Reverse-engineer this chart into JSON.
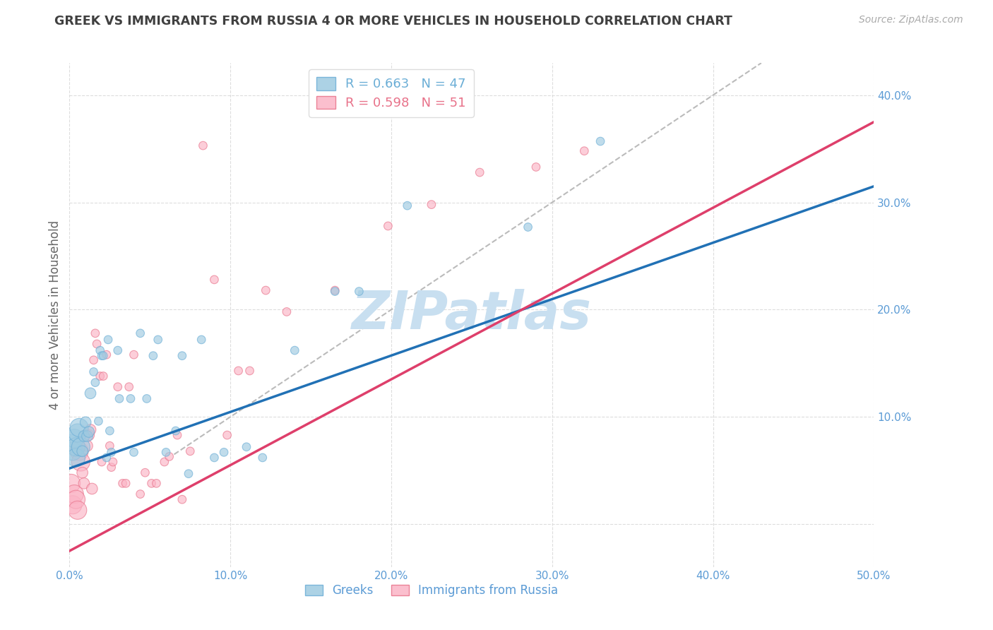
{
  "title": "GREEK VS IMMIGRANTS FROM RUSSIA 4 OR MORE VEHICLES IN HOUSEHOLD CORRELATION CHART",
  "source": "Source: ZipAtlas.com",
  "ylabel": "4 or more Vehicles in Household",
  "xlim": [
    0.0,
    0.5
  ],
  "ylim": [
    -0.04,
    0.43
  ],
  "xticks": [
    0.0,
    0.1,
    0.2,
    0.3,
    0.4,
    0.5
  ],
  "yticks": [
    0.0,
    0.1,
    0.2,
    0.3,
    0.4
  ],
  "xticklabels": [
    "0.0%",
    "10.0%",
    "20.0%",
    "30.0%",
    "40.0%",
    "50.0%"
  ],
  "yticklabels": [
    "",
    "10.0%",
    "20.0%",
    "30.0%",
    "40.0%"
  ],
  "watermark": "ZIPatlas",
  "watermark_color": "#c8dff0",
  "title_color": "#404040",
  "source_color": "#aaaaaa",
  "axis_tick_color": "#5b9bd5",
  "ylabel_color": "#666666",
  "grid_color": "#dddddd",
  "blue_scatter": [
    [
      0.001,
      0.075
    ],
    [
      0.002,
      0.068
    ],
    [
      0.003,
      0.08
    ],
    [
      0.004,
      0.072
    ],
    [
      0.004,
      0.062
    ],
    [
      0.005,
      0.085
    ],
    [
      0.006,
      0.09
    ],
    [
      0.007,
      0.072
    ],
    [
      0.008,
      0.068
    ],
    [
      0.009,
      0.082
    ],
    [
      0.01,
      0.095
    ],
    [
      0.011,
      0.082
    ],
    [
      0.012,
      0.086
    ],
    [
      0.013,
      0.122
    ],
    [
      0.015,
      0.142
    ],
    [
      0.016,
      0.132
    ],
    [
      0.018,
      0.096
    ],
    [
      0.019,
      0.162
    ],
    [
      0.02,
      0.157
    ],
    [
      0.021,
      0.157
    ],
    [
      0.023,
      0.062
    ],
    [
      0.024,
      0.172
    ],
    [
      0.025,
      0.087
    ],
    [
      0.026,
      0.067
    ],
    [
      0.03,
      0.162
    ],
    [
      0.031,
      0.117
    ],
    [
      0.038,
      0.117
    ],
    [
      0.04,
      0.067
    ],
    [
      0.044,
      0.178
    ],
    [
      0.048,
      0.117
    ],
    [
      0.052,
      0.157
    ],
    [
      0.055,
      0.172
    ],
    [
      0.06,
      0.067
    ],
    [
      0.066,
      0.087
    ],
    [
      0.07,
      0.157
    ],
    [
      0.074,
      0.047
    ],
    [
      0.082,
      0.172
    ],
    [
      0.09,
      0.062
    ],
    [
      0.096,
      0.067
    ],
    [
      0.11,
      0.072
    ],
    [
      0.12,
      0.062
    ],
    [
      0.14,
      0.162
    ],
    [
      0.165,
      0.217
    ],
    [
      0.18,
      0.217
    ],
    [
      0.21,
      0.297
    ],
    [
      0.285,
      0.277
    ],
    [
      0.33,
      0.357
    ]
  ],
  "pink_scatter": [
    [
      0.001,
      0.038
    ],
    [
      0.002,
      0.018
    ],
    [
      0.003,
      0.028
    ],
    [
      0.004,
      0.023
    ],
    [
      0.005,
      0.013
    ],
    [
      0.006,
      0.068
    ],
    [
      0.007,
      0.058
    ],
    [
      0.008,
      0.048
    ],
    [
      0.009,
      0.038
    ],
    [
      0.01,
      0.083
    ],
    [
      0.011,
      0.073
    ],
    [
      0.012,
      0.083
    ],
    [
      0.013,
      0.088
    ],
    [
      0.014,
      0.033
    ],
    [
      0.015,
      0.153
    ],
    [
      0.016,
      0.178
    ],
    [
      0.017,
      0.168
    ],
    [
      0.019,
      0.138
    ],
    [
      0.02,
      0.058
    ],
    [
      0.021,
      0.138
    ],
    [
      0.023,
      0.158
    ],
    [
      0.025,
      0.073
    ],
    [
      0.026,
      0.053
    ],
    [
      0.027,
      0.058
    ],
    [
      0.03,
      0.128
    ],
    [
      0.033,
      0.038
    ],
    [
      0.035,
      0.038
    ],
    [
      0.037,
      0.128
    ],
    [
      0.04,
      0.158
    ],
    [
      0.044,
      0.028
    ],
    [
      0.047,
      0.048
    ],
    [
      0.051,
      0.038
    ],
    [
      0.054,
      0.038
    ],
    [
      0.059,
      0.058
    ],
    [
      0.062,
      0.063
    ],
    [
      0.067,
      0.083
    ],
    [
      0.07,
      0.023
    ],
    [
      0.075,
      0.068
    ],
    [
      0.083,
      0.353
    ],
    [
      0.09,
      0.228
    ],
    [
      0.098,
      0.083
    ],
    [
      0.105,
      0.143
    ],
    [
      0.112,
      0.143
    ],
    [
      0.122,
      0.218
    ],
    [
      0.135,
      0.198
    ],
    [
      0.165,
      0.218
    ],
    [
      0.198,
      0.278
    ],
    [
      0.225,
      0.298
    ],
    [
      0.255,
      0.328
    ],
    [
      0.29,
      0.333
    ],
    [
      0.32,
      0.348
    ]
  ],
  "blue_line_x": [
    0.0,
    0.5
  ],
  "blue_line_y": [
    0.052,
    0.315
  ],
  "pink_line_x": [
    0.0,
    0.5
  ],
  "pink_line_y": [
    -0.025,
    0.375
  ],
  "ref_line_x": [
    0.065,
    0.43
  ],
  "ref_line_y": [
    0.065,
    0.43
  ],
  "blue_dot_color": "#9ecae1",
  "blue_dot_edge": "#6baed6",
  "pink_dot_color": "#fbb4c6",
  "pink_dot_edge": "#e8728a",
  "blue_line_color": "#2171b5",
  "pink_line_color": "#de3f6b",
  "ref_line_color": "#bbbbbb",
  "dot_size": 70,
  "alpha": 0.65,
  "legend_blue_text": "R = 0.663   N = 47",
  "legend_pink_text": "R = 0.598   N = 51",
  "legend_blue_color": "#6baed6",
  "legend_pink_color": "#e8728a",
  "bottom_legend_blue": "Greeks",
  "bottom_legend_pink": "Immigrants from Russia"
}
